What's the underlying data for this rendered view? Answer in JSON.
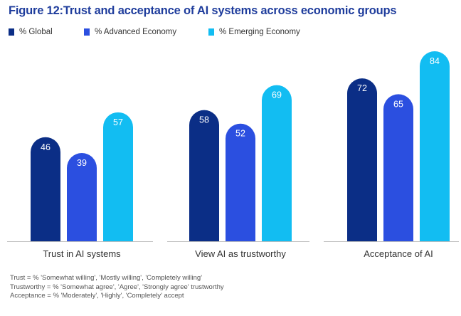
{
  "chart_data": {
    "type": "bar",
    "title": "Figure 12:Trust and acceptance of AI systems across economic groups",
    "categories": [
      "Trust in AI systems",
      "View AI as trustworthy",
      "Acceptance of AI"
    ],
    "series": [
      {
        "name": "% Global",
        "color": "#0b2e86",
        "values": [
          46,
          58,
          72
        ]
      },
      {
        "name": "% Advanced Economy",
        "color": "#2b4fe0",
        "values": [
          39,
          52,
          65
        ]
      },
      {
        "name": "% Emerging Economy",
        "color": "#12bdf2",
        "values": [
          57,
          69,
          84
        ]
      }
    ],
    "ylim": [
      0,
      84
    ],
    "xlabel": "",
    "ylabel": "",
    "grid": false,
    "legend_position": "top-left",
    "footnotes": [
      "Trust = % 'Somewhat willing', 'Mostly willing', 'Completely willing'",
      "Trustworthy = % 'Somewhat agree', 'Agree', 'Strongly agree' trustworthy",
      "Acceptance = % 'Moderately', 'Highly', 'Completely' accept"
    ]
  },
  "colors": {
    "title": "#1e3c9c",
    "axis": "#bdbdbd",
    "value_label": "#ffffff"
  }
}
